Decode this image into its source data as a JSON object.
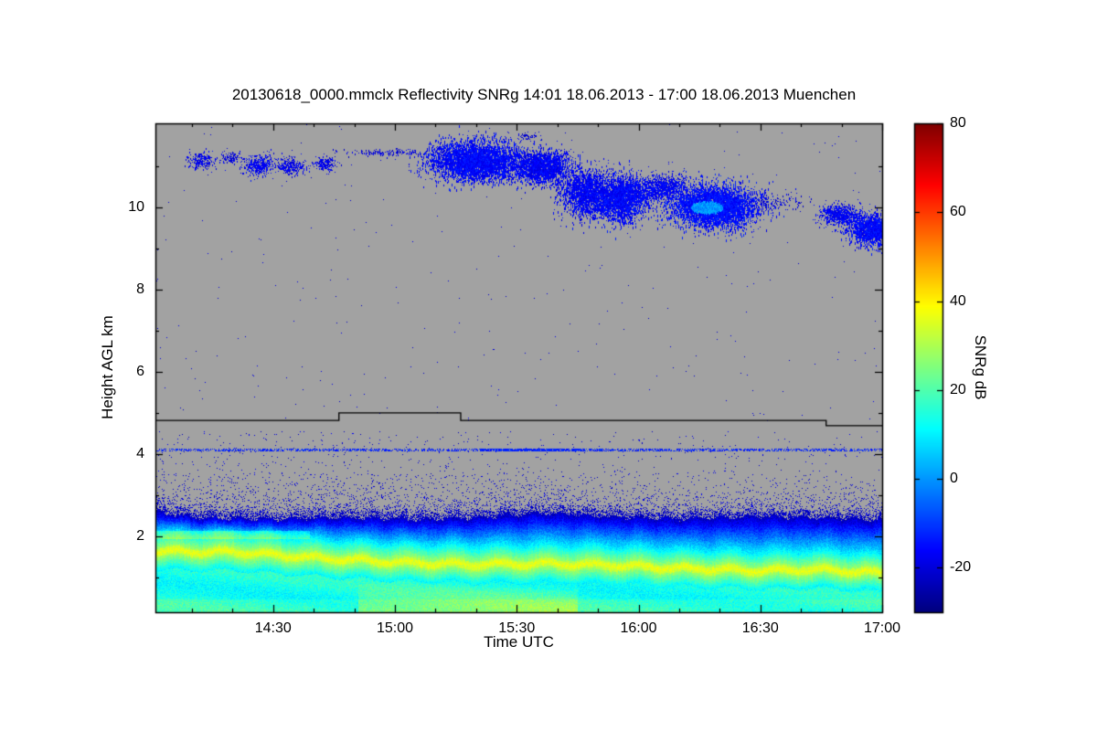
{
  "chart_data": {
    "type": "heatmap",
    "title": "20130618_0000.mmclx Reflectivity SNRg   14:01 18.06.2013 - 17:00 18.06.2013 Muenchen",
    "xlabel": "Time UTC",
    "ylabel": "Height AGL km",
    "x_range_hours": [
      14.0167,
      17.0
    ],
    "y_range_km": [
      0.15,
      12.05
    ],
    "x_ticks": [
      {
        "hours": 14.5,
        "label": "14:30"
      },
      {
        "hours": 15.0,
        "label": "15:00"
      },
      {
        "hours": 15.5,
        "label": "15:30"
      },
      {
        "hours": 16.0,
        "label": "16:00"
      },
      {
        "hours": 16.5,
        "label": "16:30"
      },
      {
        "hours": 17.0,
        "label": "17:00"
      }
    ],
    "x_minor_tick_minutes": 10,
    "y_ticks": [
      {
        "km": 2,
        "label": "2"
      },
      {
        "km": 4,
        "label": "4"
      },
      {
        "km": 6,
        "label": "6"
      },
      {
        "km": 8,
        "label": "8"
      },
      {
        "km": 10,
        "label": "10"
      }
    ],
    "y_minor_ticks_km": [
      1,
      3,
      5,
      7,
      9,
      11
    ],
    "colorbar": {
      "label": "SNRg dB",
      "min": -30,
      "max": 80,
      "colormap": "jet",
      "ticks": [
        {
          "value": -20,
          "label": "-20"
        },
        {
          "value": 0,
          "label": "0"
        },
        {
          "value": 20,
          "label": "20"
        },
        {
          "value": 40,
          "label": "40"
        },
        {
          "value": 60,
          "label": "60"
        },
        {
          "value": 80,
          "label": "80"
        }
      ]
    },
    "no_data_color": "#a2a2a2",
    "noise_seed": 7,
    "boundary_layer": {
      "top_km": [
        [
          14.0167,
          2.72
        ],
        [
          14.2,
          2.6
        ],
        [
          14.5,
          2.56
        ],
        [
          14.8,
          2.6
        ],
        [
          15.1,
          2.55
        ],
        [
          15.35,
          2.6
        ],
        [
          15.6,
          2.72
        ],
        [
          15.9,
          2.62
        ],
        [
          16.2,
          2.56
        ],
        [
          16.5,
          2.63
        ],
        [
          16.8,
          2.58
        ],
        [
          17.0,
          2.55
        ]
      ],
      "bright_band_km": [
        [
          14.0167,
          1.62
        ],
        [
          14.35,
          1.6
        ],
        [
          14.7,
          1.45
        ],
        [
          15.0,
          1.35
        ],
        [
          15.3,
          1.3
        ],
        [
          15.6,
          1.32
        ],
        [
          15.9,
          1.28
        ],
        [
          16.2,
          1.2
        ],
        [
          16.5,
          1.15
        ],
        [
          16.75,
          1.18
        ],
        [
          17.0,
          1.08
        ]
      ],
      "snr_top_db": -24,
      "snr_bright_db": 34,
      "snr_low_db": 15
    },
    "range_boundary_line": {
      "color": "#000000",
      "points": [
        [
          14.0167,
          4.82
        ],
        [
          14.77,
          4.82
        ],
        [
          14.77,
          5.0
        ],
        [
          15.27,
          5.0
        ],
        [
          15.27,
          4.82
        ],
        [
          16.77,
          4.82
        ],
        [
          16.77,
          4.69
        ],
        [
          17.0,
          4.69
        ]
      ]
    },
    "dotted_layer": {
      "height_km": 4.1,
      "snr_db": -13
    },
    "speckle": {
      "mid_density": 0.02,
      "upper_density": 0.0012,
      "mid_range_km": [
        2.85,
        4.55
      ],
      "snr_db": -20
    },
    "cloud_patches": [
      {
        "t": 14.2,
        "h": 11.15,
        "rt": 0.055,
        "rh": 0.18,
        "n": 220,
        "snr": -18
      },
      {
        "t": 14.32,
        "h": 11.22,
        "rt": 0.04,
        "rh": 0.12,
        "n": 110,
        "snr": -19
      },
      {
        "t": 14.44,
        "h": 11.05,
        "rt": 0.06,
        "rh": 0.22,
        "n": 420,
        "snr": -17
      },
      {
        "t": 14.57,
        "h": 11.02,
        "rt": 0.055,
        "rh": 0.18,
        "n": 300,
        "snr": -18
      },
      {
        "t": 14.71,
        "h": 11.08,
        "rt": 0.04,
        "rh": 0.15,
        "n": 190,
        "snr": -18
      },
      {
        "t": 14.97,
        "h": 11.35,
        "rt": 0.17,
        "rh": 0.07,
        "n": 160,
        "snr": -20
      },
      {
        "t": 15.33,
        "h": 11.15,
        "rt": 0.16,
        "rh": 0.42,
        "n": 4200,
        "snr": -16,
        "streak": true
      },
      {
        "t": 15.6,
        "h": 11.0,
        "rt": 0.11,
        "rh": 0.35,
        "n": 2000,
        "snr": -17,
        "streak": true
      },
      {
        "t": 15.78,
        "h": 10.35,
        "rt": 0.09,
        "rh": 0.5,
        "n": 1700,
        "snr": -17,
        "streak": true
      },
      {
        "t": 15.93,
        "h": 10.25,
        "rt": 0.1,
        "rh": 0.5,
        "n": 2400,
        "snr": -16,
        "streak": true
      },
      {
        "t": 16.1,
        "h": 10.5,
        "rt": 0.09,
        "rh": 0.28,
        "n": 1000,
        "snr": -17
      },
      {
        "t": 16.31,
        "h": 10.05,
        "rt": 0.155,
        "rh": 0.45,
        "n": 4600,
        "snr": -15,
        "streak": true,
        "core": {
          "t": 16.28,
          "h": 10.02,
          "rt": 0.065,
          "rh": 0.16,
          "snr": 0
        }
      },
      {
        "t": 16.55,
        "h": 10.15,
        "rt": 0.12,
        "rh": 0.2,
        "n": 170,
        "snr": -20
      },
      {
        "t": 16.83,
        "h": 9.85,
        "rt": 0.07,
        "rh": 0.22,
        "n": 800,
        "snr": -17
      },
      {
        "t": 16.96,
        "h": 9.5,
        "rt": 0.09,
        "rh": 0.32,
        "n": 1800,
        "snr": -16,
        "streak": true
      },
      {
        "t": 15.55,
        "h": 11.75,
        "rt": 0.05,
        "rh": 0.08,
        "n": 50,
        "snr": -20
      }
    ]
  }
}
